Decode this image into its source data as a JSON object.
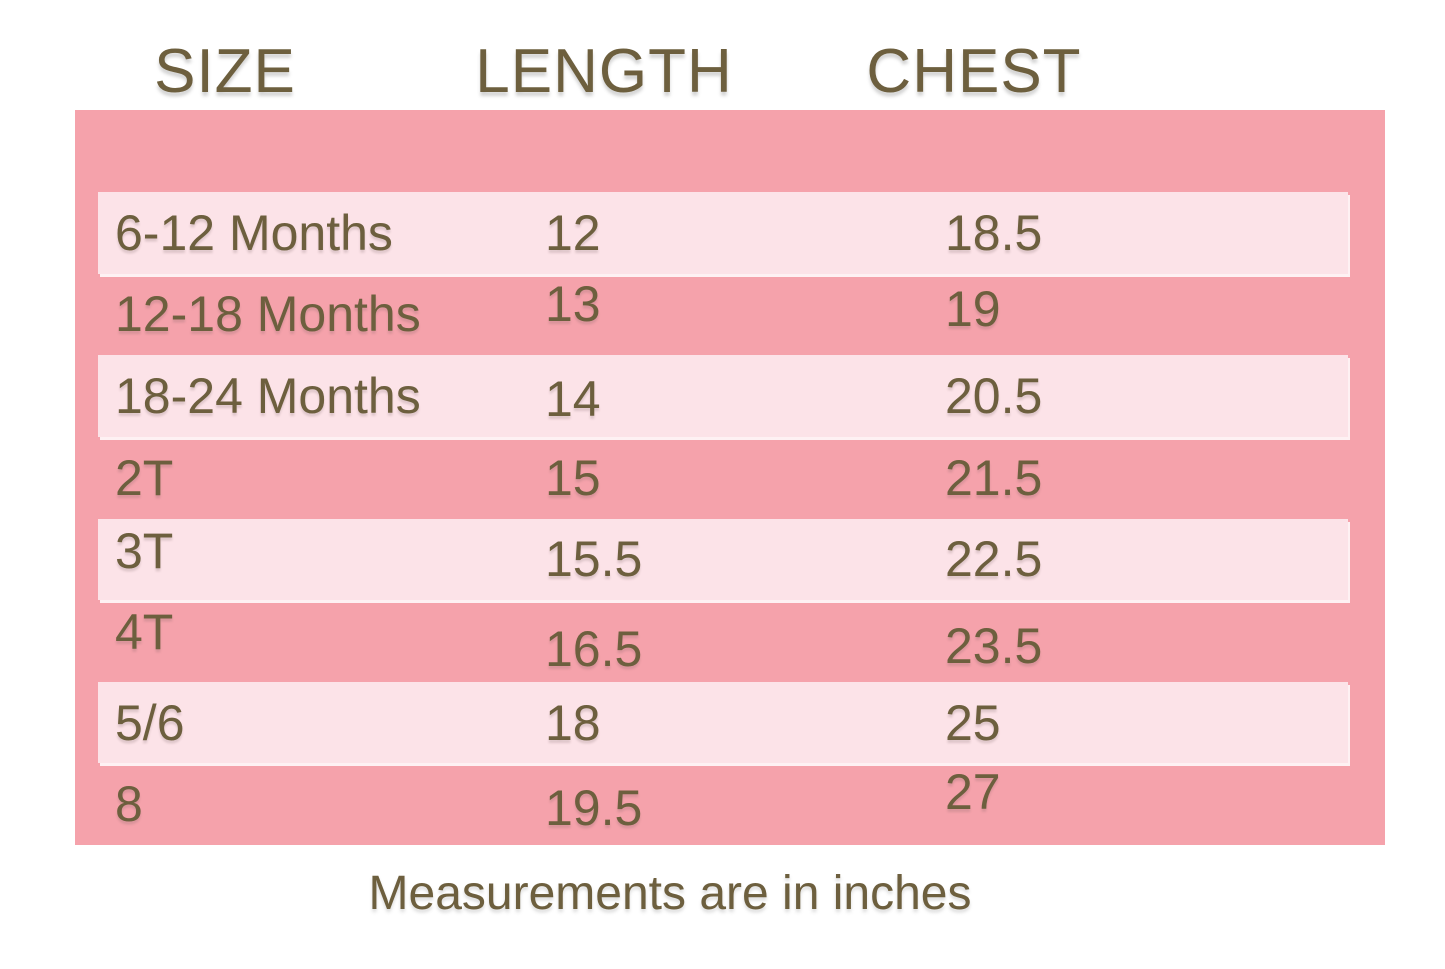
{
  "chart_data": {
    "type": "table",
    "title": "",
    "columns": [
      "SIZE",
      "LENGTH",
      "CHEST"
    ],
    "rows": [
      {
        "size": "6-12 Months",
        "length": "12",
        "chest": "18.5"
      },
      {
        "size": "12-18 Months",
        "length": "13",
        "chest": "19"
      },
      {
        "size": "18-24 Months",
        "length": "14",
        "chest": "20.5"
      },
      {
        "size": "2T",
        "length": "15",
        "chest": "21.5"
      },
      {
        "size": "3T",
        "length": "15.5",
        "chest": "22.5"
      },
      {
        "size": "4T",
        "length": "16.5",
        "chest": "23.5"
      },
      {
        "size": "5/6",
        "length": "18",
        "chest": "25"
      },
      {
        "size": "8",
        "length": "19.5",
        "chest": "27"
      }
    ],
    "note": "Measurements are in inches",
    "units": "inches"
  },
  "colors": {
    "page_background": "#ffffff",
    "table_background": "#f5a2ab",
    "row_highlight": "#fce3e8",
    "text": "#6d5f3e"
  }
}
